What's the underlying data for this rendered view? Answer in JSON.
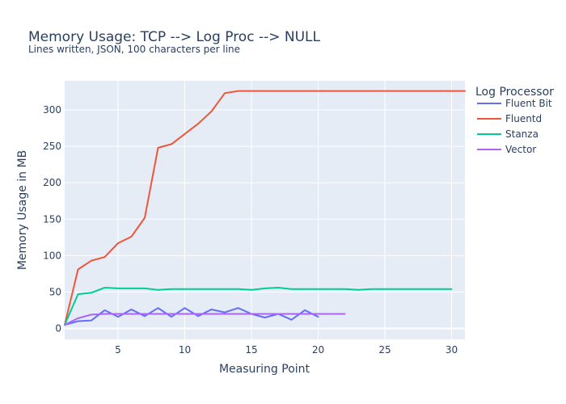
{
  "chart_data": {
    "type": "line",
    "title": "Memory Usage: TCP --> Log Proc --> NULL",
    "subtitle": "Lines written, JSON, 100 characters per line",
    "xlabel": "Measuring Point",
    "ylabel": "Memory Usage in MB",
    "xlim": [
      1,
      31
    ],
    "ylim": [
      -15,
      340
    ],
    "x_ticks": [
      5,
      10,
      15,
      20,
      25,
      30
    ],
    "y_ticks": [
      0,
      50,
      100,
      150,
      200,
      250,
      300
    ],
    "grid": true,
    "legend_title": "Log Processor",
    "legend_position": "right",
    "series": [
      {
        "name": "Fluent Bit",
        "color": "#636efa",
        "x": [
          1,
          2,
          3,
          4,
          5,
          6,
          7,
          8,
          9,
          10,
          11,
          12,
          13,
          14,
          15,
          16,
          17,
          18,
          19,
          20
        ],
        "y": [
          5,
          10,
          11,
          25,
          16,
          26,
          17,
          28,
          16,
          28,
          17,
          26,
          22,
          28,
          20,
          15,
          20,
          12,
          25,
          16
        ]
      },
      {
        "name": "Fluentd",
        "color": "#ef553b",
        "x": [
          1,
          2,
          3,
          4,
          5,
          6,
          7,
          8,
          9,
          10,
          11,
          12,
          13,
          14,
          15,
          16,
          17,
          18,
          19,
          20,
          21,
          22,
          23,
          24,
          25,
          26,
          27,
          28,
          29,
          30,
          31
        ],
        "y": [
          5,
          81,
          93,
          98,
          117,
          126,
          152,
          248,
          253,
          267,
          281,
          298,
          323,
          326,
          326,
          326,
          326,
          326,
          326,
          326,
          326,
          326,
          326,
          326,
          326,
          326,
          326,
          326,
          326,
          326,
          326
        ]
      },
      {
        "name": "Stanza",
        "color": "#00cc96",
        "x": [
          1,
          2,
          3,
          4,
          5,
          6,
          7,
          8,
          9,
          10,
          11,
          12,
          13,
          14,
          15,
          16,
          17,
          18,
          19,
          20,
          21,
          22,
          23,
          24,
          25,
          26,
          27,
          28,
          29,
          30
        ],
        "y": [
          5,
          47,
          49,
          56,
          55,
          55,
          55,
          53,
          54,
          54,
          54,
          54,
          54,
          54,
          53,
          55,
          56,
          54,
          54,
          54,
          54,
          54,
          53,
          54,
          54,
          54,
          54,
          54,
          54,
          54
        ]
      },
      {
        "name": "Vector",
        "color": "#ab63fa",
        "x": [
          1,
          2,
          3,
          4,
          5,
          6,
          7,
          8,
          9,
          10,
          11,
          12,
          13,
          14,
          15,
          16,
          17,
          18,
          19,
          20,
          21,
          22
        ],
        "y": [
          5,
          14,
          19,
          20,
          20,
          20,
          20,
          20,
          20,
          20,
          20,
          20,
          20,
          20,
          20,
          20,
          20,
          20,
          20,
          20,
          20,
          20
        ]
      }
    ]
  }
}
